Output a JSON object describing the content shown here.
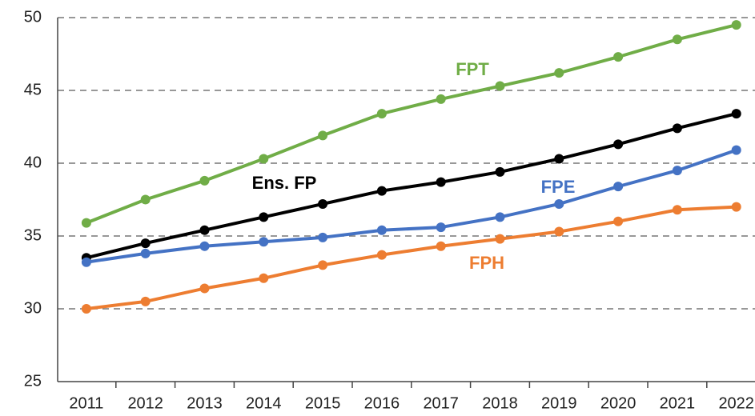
{
  "chart_data": {
    "type": "line",
    "categories": [
      "2011",
      "2012",
      "2013",
      "2014",
      "2015",
      "2016",
      "2017",
      "2018",
      "2019",
      "2020",
      "2021",
      "2022"
    ],
    "series": [
      {
        "name": "FPT",
        "color": "#70ad47",
        "values": [
          35.9,
          37.5,
          38.8,
          40.3,
          41.9,
          43.4,
          44.4,
          45.3,
          46.2,
          47.3,
          48.5,
          49.5
        ]
      },
      {
        "name": "Ens. FP",
        "color": "#000000",
        "values": [
          33.5,
          34.5,
          35.4,
          36.3,
          37.2,
          38.1,
          38.7,
          39.4,
          40.3,
          41.3,
          42.4,
          43.4
        ]
      },
      {
        "name": "FPE",
        "color": "#4472c4",
        "values": [
          33.2,
          33.8,
          34.3,
          34.6,
          34.9,
          35.4,
          35.6,
          36.3,
          37.2,
          38.4,
          39.5,
          40.9
        ]
      },
      {
        "name": "FPH",
        "color": "#ed7d31",
        "values": [
          30.0,
          30.5,
          31.4,
          32.1,
          33.0,
          33.7,
          34.3,
          34.8,
          35.3,
          36.0,
          36.8,
          37.0
        ]
      }
    ],
    "ylim": [
      25,
      50
    ],
    "yticks": [
      25,
      30,
      35,
      40,
      45,
      50
    ],
    "grid": true
  }
}
